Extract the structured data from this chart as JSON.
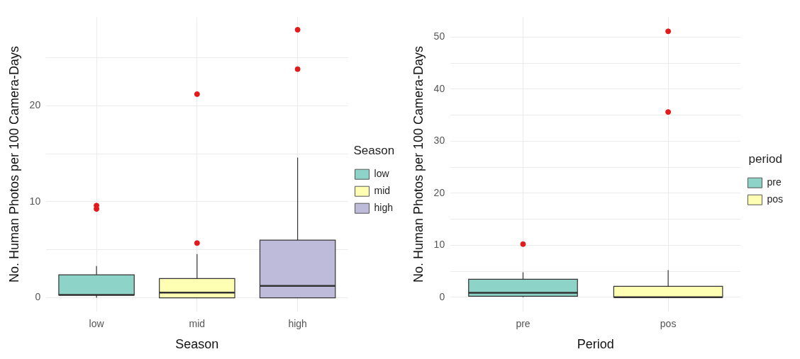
{
  "chart_data": [
    {
      "type": "box",
      "xlabel": "Season",
      "ylabel": "No. Human Photos per 100 Camera-Days",
      "legend_title": "Season",
      "legend": "right",
      "grid": true,
      "categories": [
        "low",
        "mid",
        "high"
      ],
      "ylim": [
        -1.4,
        29.2
      ],
      "yticks": [
        0,
        {
          "value": 5,
          "label": null
        },
        10,
        {
          "value": 15,
          "label": null
        },
        20,
        {
          "value": 25,
          "label": null
        }
      ],
      "series": [
        {
          "name": "low",
          "color": "#8dd3c7",
          "boxes": [
            {
              "low": 0,
              "q1": 0.3,
              "median": 0.3,
              "q3": 2.4,
              "high": 3.3,
              "outliers": [
                9.25,
                9.6
              ]
            },
            null,
            null
          ]
        },
        {
          "name": "mid",
          "color": "#ffffb3",
          "boxes": [
            null,
            {
              "low": 0,
              "q1": 0,
              "median": 0.55,
              "q3": 2.0,
              "high": 4.55,
              "outliers": [
                5.7,
                21.2
              ]
            },
            null
          ]
        },
        {
          "name": "high",
          "color": "#bebada",
          "boxes": [
            null,
            null,
            {
              "low": 0,
              "q1": 0,
              "median": 1.25,
              "q3": 6.0,
              "high": 14.6,
              "outliers": [
                23.8,
                27.9
              ]
            }
          ]
        }
      ]
    },
    {
      "type": "box",
      "xlabel": "Period",
      "ylabel": "No. Human Photos per 100 Camera-Days",
      "legend_title": "period",
      "legend": "right",
      "grid": true,
      "categories": [
        "pre",
        "pos"
      ],
      "ylim": [
        -2.7,
        53.8
      ],
      "yticks": [
        0,
        {
          "value": 5,
          "label": null
        },
        10,
        {
          "value": 15,
          "label": null
        },
        20,
        {
          "value": 25,
          "label": null
        },
        30,
        {
          "value": 35,
          "label": null
        },
        40,
        {
          "value": 45,
          "label": null
        },
        50
      ],
      "series": [
        {
          "name": "pre",
          "color": "#8dd3c7",
          "boxes": [
            {
              "low": 0,
              "q1": 0.2,
              "median": 0.85,
              "q3": 3.45,
              "high": 4.8,
              "outliers": [
                10.2
              ]
            },
            null
          ]
        },
        {
          "name": "pos",
          "color": "#ffffb3",
          "boxes": [
            null,
            {
              "low": 0,
              "q1": 0,
              "median": 0,
              "q3": 2.1,
              "high": 5.2,
              "outliers": [
                35.6,
                51.1
              ]
            }
          ]
        }
      ]
    }
  ]
}
